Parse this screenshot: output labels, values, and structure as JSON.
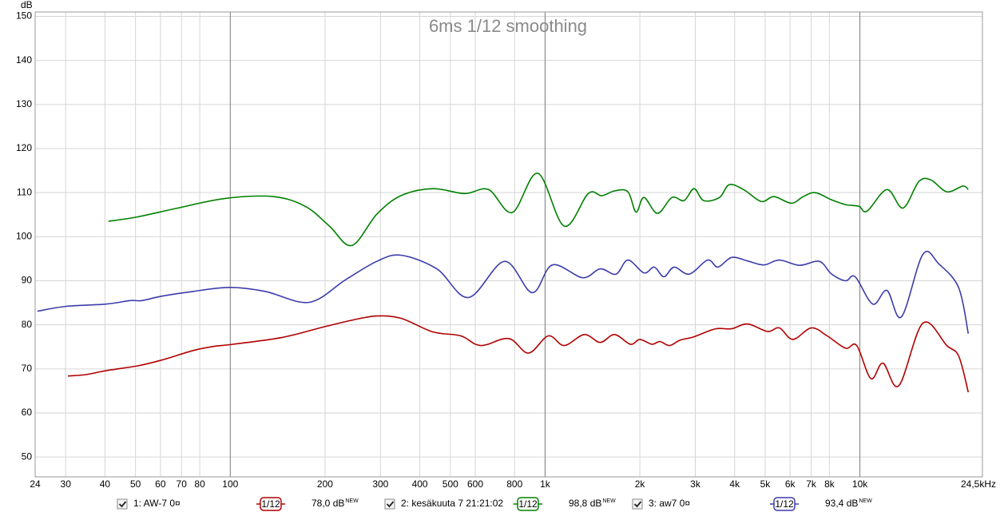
{
  "chart_data": {
    "type": "line",
    "title": "6ms 1/12 smoothing",
    "y_label": "dB",
    "log_x": true,
    "grid": true,
    "xlim": [
      24,
      24500
    ],
    "ylim": [
      45.5,
      151
    ],
    "yticks": [
      50,
      60,
      70,
      80,
      90,
      100,
      110,
      120,
      130,
      140,
      150
    ],
    "xticks": [
      24,
      30,
      40,
      50,
      60,
      70,
      80,
      100,
      200,
      300,
      400,
      500,
      600,
      800,
      {
        "value": 1000,
        "label": "1k"
      },
      {
        "value": 2000,
        "label": "2k"
      },
      {
        "value": 3000,
        "label": "3k"
      },
      {
        "value": 4000,
        "label": "4k"
      },
      {
        "value": 5000,
        "label": "5k"
      },
      {
        "value": 6000,
        "label": "6k"
      },
      {
        "value": 7000,
        "label": "7k"
      },
      {
        "value": 8000,
        "label": "8k"
      },
      {
        "value": 10000,
        "label": "10k"
      },
      {
        "value": 24500,
        "label": "24,5kHz"
      }
    ],
    "series": [
      {
        "name": "1: AW-7 0¤",
        "color": "#b00000",
        "smoothing": "1/12",
        "level": "78,0 dB",
        "level_tag": "NEW",
        "x": [
          30.5,
          34.8,
          40.3,
          50.8,
          60.5,
          76.5,
          88.5,
          102,
          145,
          200,
          245,
          292,
          348,
          440,
          540,
          624,
          766,
          886,
          1024,
          1150,
          1332,
          1496,
          1662,
          1867,
          2000,
          2183,
          2316,
          2484,
          2680,
          2973,
          3480,
          3910,
          4395,
          5085,
          5550,
          6125,
          7010,
          7870,
          9000,
          9770,
          10840,
          11840,
          13300,
          15850,
          18880,
          20600,
          22090
        ],
        "values": [
          68.4,
          68.7,
          69.6,
          70.7,
          72.0,
          74.2,
          75.1,
          75.6,
          77.1,
          79.6,
          81.1,
          82.0,
          81.5,
          78.4,
          77.5,
          75.3,
          76.9,
          73.6,
          77.5,
          75.3,
          77.8,
          76.0,
          77.8,
          75.6,
          76.7,
          75.6,
          76.2,
          75.3,
          76.5,
          77.3,
          79.1,
          79.1,
          80.2,
          78.5,
          79.3,
          76.7,
          79.3,
          77.5,
          74.7,
          75.3,
          67.8,
          71.3,
          66.2,
          80.4,
          75.3,
          72.9,
          64.7
        ]
      },
      {
        "name": "2: kesäkuuta 7 21:21:02",
        "color": "#008000",
        "smoothing": "1/12",
        "level": "98,8 dB",
        "level_tag": "NEW",
        "x": [
          41.0,
          50.8,
          68.1,
          96.5,
          137,
          173,
          206,
          243,
          292,
          348,
          440,
          555,
          661,
          787,
          948,
          1150,
          1371,
          1514,
          1662,
          1832,
          1945,
          2061,
          2275,
          2529,
          2763,
          2973,
          3190,
          3581,
          3844,
          4270,
          4855,
          5333,
          6055,
          6610,
          7215,
          8110,
          9000,
          9930,
          10540,
          12190,
          13700,
          15380,
          16800,
          18880,
          21240,
          22090
        ],
        "values": [
          103.5,
          104.5,
          106.5,
          108.7,
          109.1,
          106.9,
          102.5,
          98.0,
          105.1,
          109.3,
          110.9,
          109.8,
          110.7,
          105.5,
          114.4,
          102.4,
          109.8,
          109.3,
          110.4,
          110.2,
          105.6,
          108.9,
          105.3,
          108.9,
          108.2,
          110.9,
          108.2,
          108.9,
          111.8,
          110.7,
          108.0,
          109.1,
          107.6,
          109.1,
          110.0,
          108.4,
          107.3,
          106.9,
          105.8,
          110.7,
          106.5,
          112.5,
          112.9,
          110.2,
          111.5,
          110.7
        ]
      },
      {
        "name": "3: aw7 0¤",
        "color": "#3c3cab",
        "smoothing": "1/12",
        "level": "93,4 dB",
        "level_tag": "NEW",
        "x": [
          24.4,
          30.1,
          40.3,
          48.0,
          52.4,
          60.5,
          76.5,
          99.4,
          129,
          178,
          232,
          292,
          348,
          453,
          571,
          743,
          910,
          1054,
          1316,
          1496,
          1680,
          1832,
          2061,
          2222,
          2384,
          2570,
          2872,
          3282,
          3540,
          3910,
          4395,
          4945,
          5550,
          6425,
          7430,
          8110,
          9000,
          9660,
          10990,
          12190,
          13550,
          15850,
          17830,
          20600,
          22090
        ],
        "values": [
          83.1,
          84.2,
          84.7,
          85.5,
          85.5,
          86.5,
          87.6,
          88.5,
          87.6,
          85.1,
          90.2,
          94.4,
          95.8,
          92.7,
          86.2,
          94.4,
          87.3,
          93.6,
          90.7,
          92.7,
          91.5,
          94.7,
          91.8,
          93.1,
          90.9,
          93.1,
          91.5,
          94.7,
          93.1,
          95.3,
          94.5,
          93.6,
          94.7,
          93.5,
          94.4,
          91.6,
          90.0,
          90.9,
          84.7,
          87.8,
          81.8,
          96.0,
          93.8,
          88.4,
          78.0
        ]
      }
    ]
  }
}
